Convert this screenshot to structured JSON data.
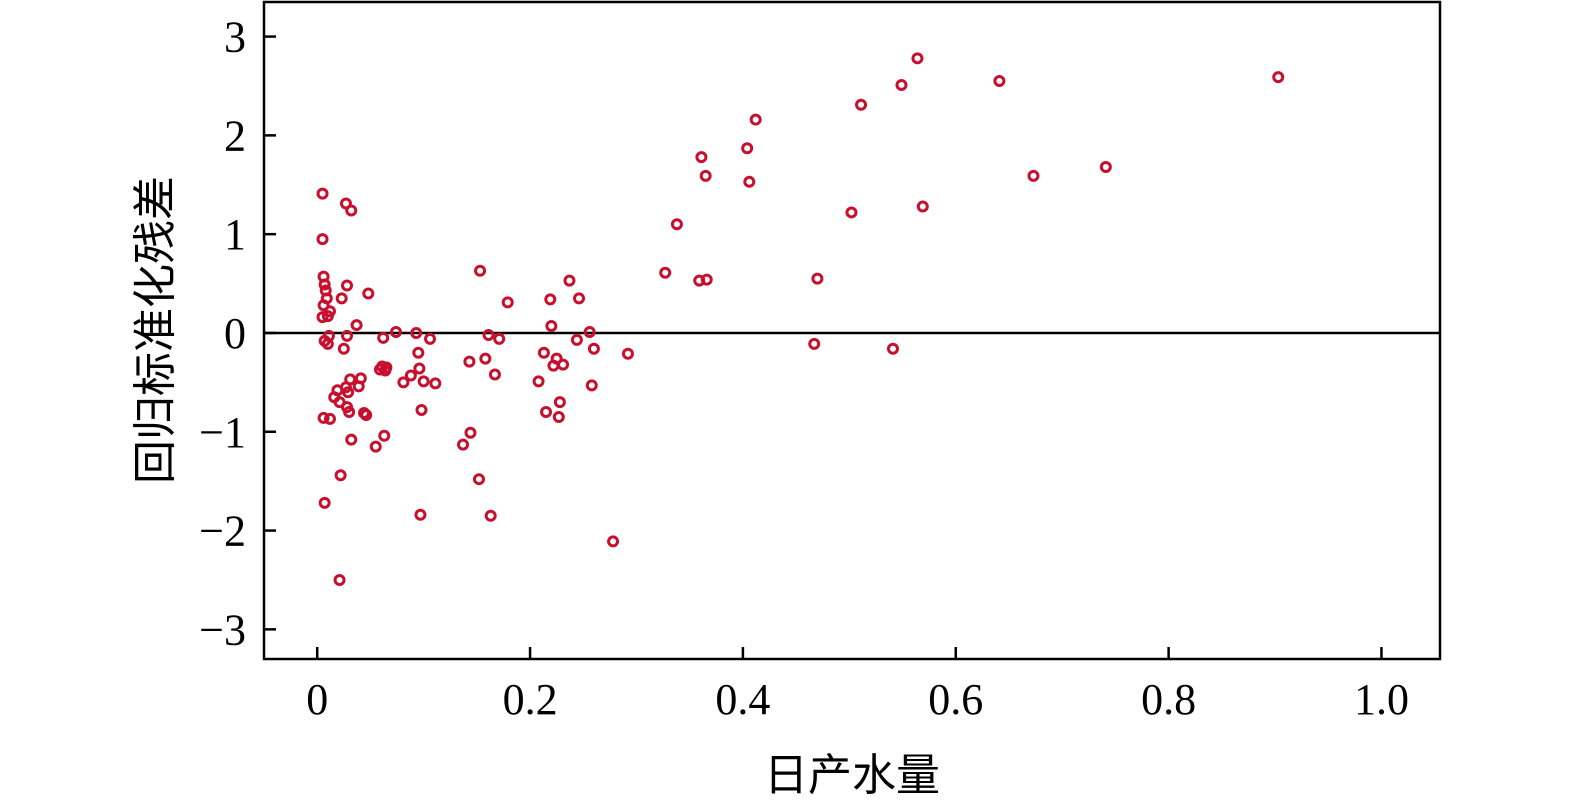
{
  "chart_data": {
    "type": "scatter",
    "xlabel": "日产水量",
    "ylabel": "回归标准化残差",
    "xlim": [
      -0.05,
      1.055
    ],
    "ylim": [
      -3.3,
      3.35
    ],
    "x_ticks": [
      0,
      0.2,
      0.4,
      0.6,
      0.8,
      1.0
    ],
    "x_tick_labels": [
      "0",
      "0.2",
      "0.4",
      "0.6",
      "0.8",
      "1.0"
    ],
    "y_ticks": [
      3,
      2,
      1,
      0,
      -1,
      -2,
      -3
    ],
    "y_tick_labels": [
      "3",
      "2",
      "1",
      "0",
      "−1",
      "−2",
      "−3"
    ],
    "reference_line_y": 0,
    "marker": "hollow-circle",
    "marker_color": "#c8102e",
    "grid": false,
    "points": [
      [
        0.005,
        1.41
      ],
      [
        0.005,
        0.95
      ],
      [
        0.006,
        0.57
      ],
      [
        0.007,
        0.49
      ],
      [
        0.008,
        0.43
      ],
      [
        0.006,
        0.28
      ],
      [
        0.005,
        0.16
      ],
      [
        0.009,
        0.35
      ],
      [
        0.01,
        0.17
      ],
      [
        0.011,
        -0.03
      ],
      [
        0.007,
        -0.08
      ],
      [
        0.01,
        -0.11
      ],
      [
        0.012,
        0.22
      ],
      [
        0.006,
        -0.86
      ],
      [
        0.012,
        -0.87
      ],
      [
        0.007,
        -1.72
      ],
      [
        0.016,
        -0.65
      ],
      [
        0.019,
        -0.58
      ],
      [
        0.021,
        -0.7
      ],
      [
        0.022,
        -1.44
      ],
      [
        0.023,
        0.35
      ],
      [
        0.025,
        -0.16
      ],
      [
        0.021,
        -2.5
      ],
      [
        0.027,
        1.31
      ],
      [
        0.028,
        0.48
      ],
      [
        0.028,
        -0.03
      ],
      [
        0.032,
        1.24
      ],
      [
        0.027,
        -0.55
      ],
      [
        0.029,
        -0.6
      ],
      [
        0.028,
        -0.75
      ],
      [
        0.03,
        -0.8
      ],
      [
        0.031,
        -0.47
      ],
      [
        0.032,
        -1.08
      ],
      [
        0.037,
        0.08
      ],
      [
        0.039,
        -0.54
      ],
      [
        0.041,
        -0.46
      ],
      [
        0.044,
        -0.81
      ],
      [
        0.046,
        -0.83
      ],
      [
        0.048,
        0.4
      ],
      [
        0.055,
        -1.15
      ],
      [
        0.059,
        -0.37
      ],
      [
        0.061,
        -0.34
      ],
      [
        0.062,
        -0.05
      ],
      [
        0.063,
        -1.04
      ],
      [
        0.064,
        -0.38
      ],
      [
        0.065,
        -0.35
      ],
      [
        0.074,
        0.01
      ],
      [
        0.081,
        -0.5
      ],
      [
        0.088,
        -0.43
      ],
      [
        0.093,
        0.0
      ],
      [
        0.095,
        -0.2
      ],
      [
        0.096,
        -0.36
      ],
      [
        0.097,
        -1.84
      ],
      [
        0.098,
        -0.78
      ],
      [
        0.1,
        -0.49
      ],
      [
        0.106,
        -0.06
      ],
      [
        0.111,
        -0.51
      ],
      [
        0.137,
        -1.13
      ],
      [
        0.143,
        -0.29
      ],
      [
        0.144,
        -1.01
      ],
      [
        0.152,
        -1.48
      ],
      [
        0.153,
        0.63
      ],
      [
        0.158,
        -0.26
      ],
      [
        0.161,
        -0.02
      ],
      [
        0.163,
        -1.85
      ],
      [
        0.167,
        -0.42
      ],
      [
        0.171,
        -0.06
      ],
      [
        0.179,
        0.31
      ],
      [
        0.208,
        -0.49
      ],
      [
        0.213,
        -0.2
      ],
      [
        0.215,
        -0.8
      ],
      [
        0.219,
        0.34
      ],
      [
        0.22,
        0.07
      ],
      [
        0.222,
        -0.33
      ],
      [
        0.225,
        -0.26
      ],
      [
        0.227,
        -0.85
      ],
      [
        0.228,
        -0.7
      ],
      [
        0.231,
        -0.32
      ],
      [
        0.237,
        0.53
      ],
      [
        0.244,
        -0.07
      ],
      [
        0.246,
        0.35
      ],
      [
        0.256,
        0.01
      ],
      [
        0.258,
        -0.53
      ],
      [
        0.26,
        -0.16
      ],
      [
        0.278,
        -2.11
      ],
      [
        0.292,
        -0.21
      ],
      [
        0.327,
        0.61
      ],
      [
        0.338,
        1.1
      ],
      [
        0.359,
        0.53
      ],
      [
        0.361,
        1.78
      ],
      [
        0.365,
        1.59
      ],
      [
        0.366,
        0.54
      ],
      [
        0.404,
        1.87
      ],
      [
        0.406,
        1.53
      ],
      [
        0.412,
        2.16
      ],
      [
        0.467,
        -0.11
      ],
      [
        0.47,
        0.55
      ],
      [
        0.502,
        1.22
      ],
      [
        0.511,
        2.31
      ],
      [
        0.541,
        -0.16
      ],
      [
        0.549,
        2.51
      ],
      [
        0.564,
        2.78
      ],
      [
        0.569,
        1.28
      ],
      [
        0.641,
        2.55
      ],
      [
        0.673,
        1.59
      ],
      [
        0.741,
        1.68
      ],
      [
        0.903,
        2.59
      ]
    ]
  }
}
